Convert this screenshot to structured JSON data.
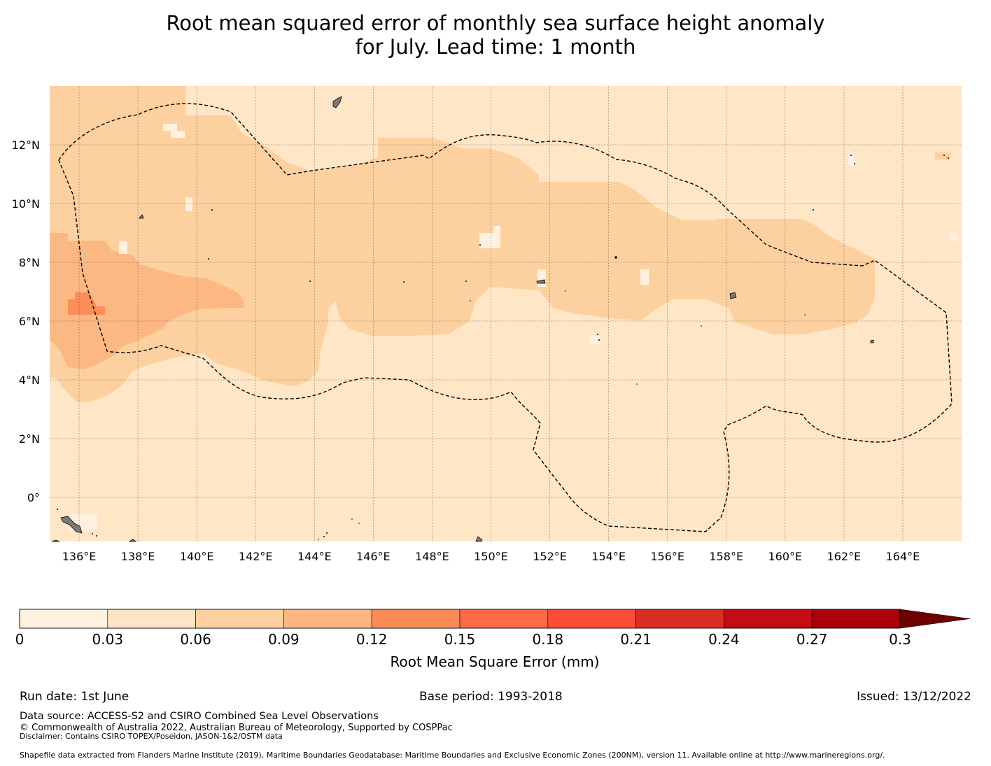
{
  "title": {
    "line1": "Root mean squared error of monthly sea surface height anomaly",
    "line2": "for July. Lead time: 1 month"
  },
  "map": {
    "lat_labels": [
      "12°N",
      "10°N",
      "8°N",
      "6°N",
      "4°N",
      "2°N",
      "0°"
    ],
    "lon_labels": [
      "136°E",
      "138°E",
      "140°E",
      "142°E",
      "144°E",
      "146°E",
      "148°E",
      "150°E",
      "152°E",
      "154°E",
      "156°E",
      "158°E",
      "160°E",
      "162°E",
      "164°E"
    ],
    "lon_range": [
      135.0,
      166.0
    ],
    "lat_range": [
      -1.5,
      14.0
    ],
    "boundary": "dashed",
    "land_color": "#7a7a7a"
  },
  "colorbar": {
    "ticks": [
      "0",
      "0.03",
      "0.06",
      "0.09",
      "0.12",
      "0.15",
      "0.18",
      "0.21",
      "0.24",
      "0.27",
      "0.3"
    ],
    "colors": [
      "#fff0df",
      "#fee3c4",
      "#fdd09e",
      "#fcb682",
      "#fc8c57",
      "#fd6a48",
      "#fb4c38",
      "#d82f22",
      "#c50b13",
      "#ab0009"
    ],
    "extend_color": "#6e0000",
    "label": "Root Mean Square Error (mm)"
  },
  "footer": {
    "run_date": "Run date: 1st June",
    "base_period": "Base period: 1993-2018",
    "issued": "Issued: 13/12/2022",
    "data_source": "Data source: ACCESS-S2 and CSIRO Combined Sea Level Observations",
    "copyright": "© Commonwealth of Australia 2022, Australian Bureau of Meteorology, Supported by COSPPac",
    "disclaimer": "Disclaimer: Contains CSIRO TOPEX/Poseidon, JASON-1&2/OSTM data",
    "shapefile": "Shapefile data extracted from Flanders Marine Institute (2019), Maritime Boundaries Geodatabase: Maritime Boundaries and Exclusive Economic Zones (200NM), version 11. Available online at http://www.marineregions.org/."
  }
}
